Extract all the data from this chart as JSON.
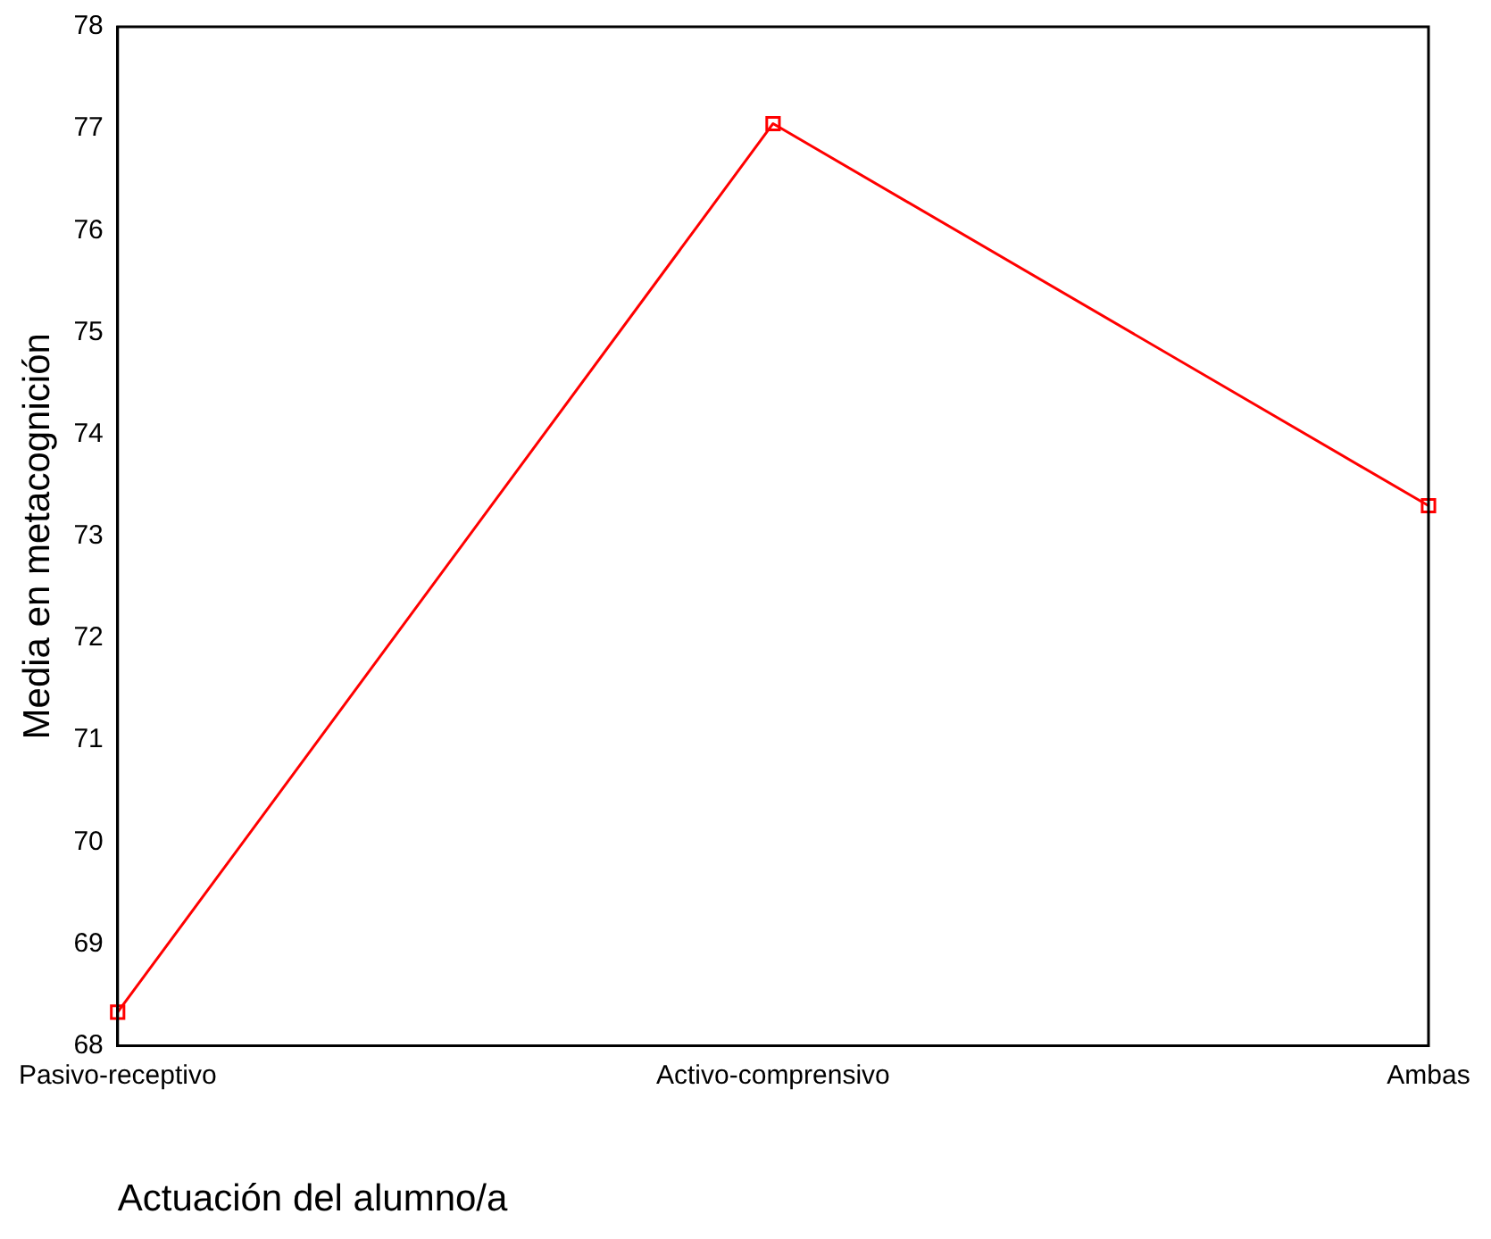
{
  "chart_data": {
    "type": "line",
    "xlabel": "Actuación del alumno/a",
    "ylabel": "Media en metacognición",
    "categories": [
      "Pasivo-receptivo",
      "Activo-comprensivo",
      "Ambas"
    ],
    "series": [
      {
        "color": "#ff0000",
        "values": [
          68.33,
          77.05,
          73.3
        ]
      }
    ],
    "ylim": [
      68,
      78
    ],
    "yticks": [
      68,
      69,
      70,
      71,
      72,
      73,
      74,
      75,
      76,
      77,
      78
    ],
    "grid": false,
    "legend": false,
    "marker": "square",
    "line_style": "solid"
  }
}
